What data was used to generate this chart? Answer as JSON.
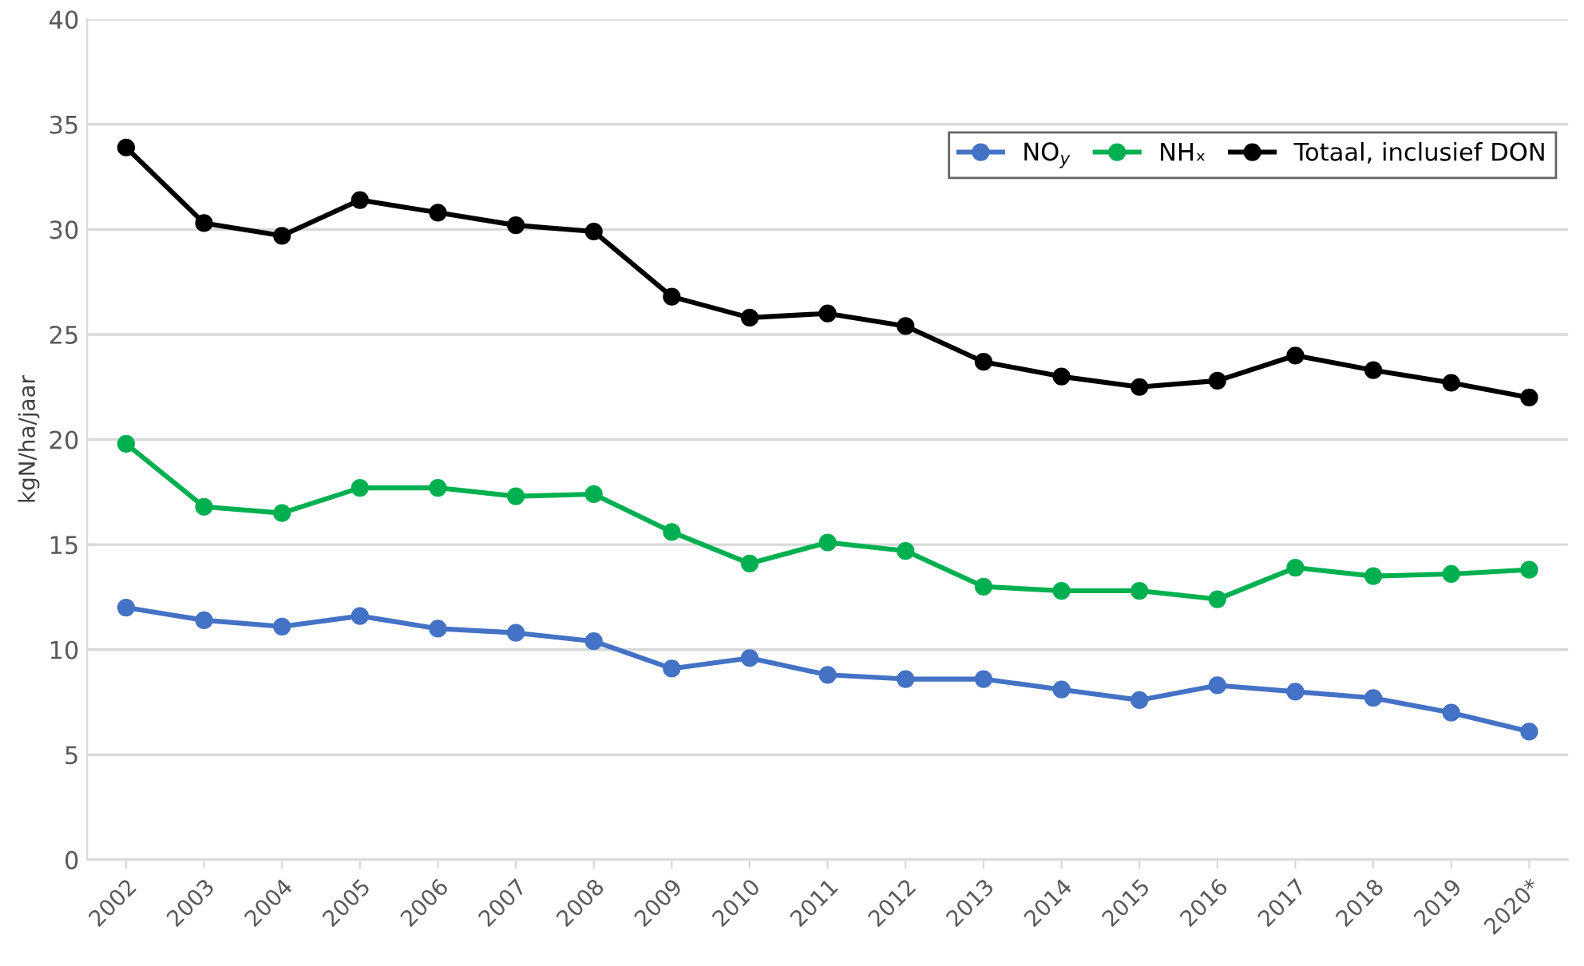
{
  "chart_data": {
    "type": "line",
    "ylabel": "kgN/ha/jaar",
    "categories": [
      "2002",
      "2003",
      "2004",
      "2005",
      "2006",
      "2007",
      "2008",
      "2009",
      "2010",
      "2011",
      "2012",
      "2013",
      "2014",
      "2015",
      "2016",
      "2017",
      "2018",
      "2019",
      "2020*"
    ],
    "series": [
      {
        "name": "NO$_{y}$",
        "color": "#4472c4",
        "values": [
          12.0,
          11.4,
          11.1,
          11.6,
          11.0,
          10.8,
          10.4,
          9.1,
          9.6,
          8.8,
          8.6,
          8.6,
          8.1,
          7.6,
          8.3,
          8.0,
          7.7,
          7.0,
          6.1
        ]
      },
      {
        "name": "NHₓ",
        "color": "#00b050",
        "values": [
          19.8,
          16.8,
          16.5,
          17.7,
          17.7,
          17.3,
          17.4,
          15.6,
          14.1,
          15.1,
          14.7,
          13.0,
          12.8,
          12.8,
          12.4,
          13.9,
          13.5,
          13.6,
          13.8
        ]
      },
      {
        "name": "Totaal, inclusief DON",
        "color": "#000000",
        "values": [
          33.9,
          30.3,
          29.7,
          31.4,
          30.8,
          30.2,
          29.9,
          26.8,
          25.8,
          26.0,
          25.4,
          23.7,
          23.0,
          22.5,
          22.8,
          24.0,
          23.3,
          22.7,
          22.0
        ]
      }
    ],
    "ylim": [
      0,
      40
    ],
    "yticks": [
      0,
      5,
      10,
      15,
      20,
      25,
      30,
      35,
      40
    ],
    "grid": "y",
    "legend": "top right",
    "marker": "circle",
    "line_style": "solid"
  }
}
